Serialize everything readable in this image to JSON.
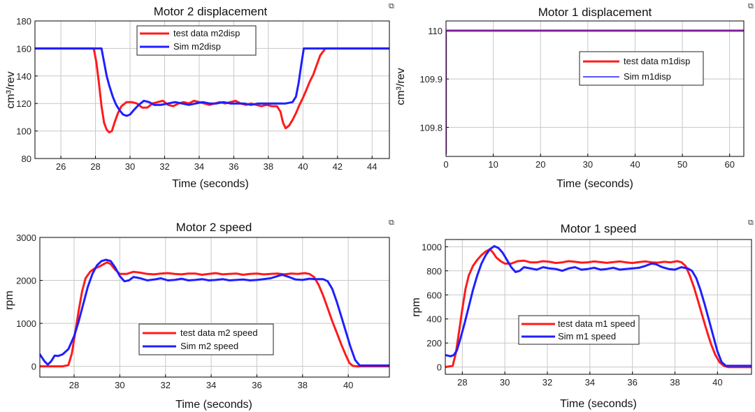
{
  "colors": {
    "test": "#ff1a1a",
    "sim": "#1f1fff",
    "flat": "#7a1f9c",
    "grid": "#c8c8c8",
    "axis": "#000000"
  },
  "corner_icon": "export-icon",
  "chart_data": [
    {
      "id": "m2disp",
      "type": "line",
      "title": "Motor 2 displacement",
      "xlabel": "Time (seconds)",
      "ylabel": "cm³/rev",
      "xlim": [
        24.5,
        45
      ],
      "ylim": [
        80,
        180
      ],
      "xticks": [
        26,
        28,
        30,
        32,
        34,
        36,
        38,
        40,
        42,
        44
      ],
      "yticks": [
        80,
        100,
        120,
        140,
        160,
        180
      ],
      "ytick_decimals": 0,
      "grid": true,
      "legend": "top-center",
      "series": [
        {
          "name": "test data m2disp",
          "color_key": "test",
          "x": [
            24.5,
            27.9,
            28.05,
            28.2,
            28.35,
            28.5,
            28.65,
            28.8,
            28.95,
            29.1,
            29.3,
            29.5,
            29.8,
            30.1,
            30.4,
            30.7,
            31.0,
            31.3,
            31.6,
            31.9,
            32.2,
            32.5,
            32.8,
            33.1,
            33.4,
            33.7,
            34.0,
            34.3,
            34.6,
            34.9,
            35.2,
            35.5,
            35.8,
            36.1,
            36.4,
            36.7,
            37.0,
            37.3,
            37.6,
            37.9,
            38.2,
            38.5,
            38.7,
            38.85,
            39.0,
            39.2,
            39.4,
            39.6,
            39.8,
            40.0,
            40.2,
            40.4,
            40.6,
            40.8,
            41.0,
            41.3,
            45.0
          ],
          "y": [
            160,
            160,
            150,
            135,
            118,
            106,
            101,
            99,
            100,
            106,
            113,
            118,
            121,
            121,
            120,
            117,
            117,
            120,
            121,
            122,
            119,
            118,
            120,
            121,
            120,
            122,
            121,
            120,
            119,
            120,
            121,
            120,
            121,
            122,
            120,
            119,
            120,
            119,
            118,
            119,
            118,
            118,
            114,
            106,
            102,
            104,
            108,
            113,
            119,
            124,
            130,
            136,
            141,
            148,
            155,
            160,
            160
          ]
        },
        {
          "name": "Sim m2disp",
          "color_key": "sim",
          "x": [
            24.5,
            28.35,
            28.5,
            28.65,
            28.8,
            29.0,
            29.2,
            29.4,
            29.6,
            29.8,
            30.0,
            30.2,
            30.5,
            30.8,
            31.1,
            31.4,
            31.8,
            32.2,
            32.6,
            33.0,
            33.4,
            33.8,
            34.2,
            34.6,
            35.0,
            35.4,
            35.8,
            36.2,
            36.6,
            37.0,
            37.4,
            37.8,
            38.2,
            38.6,
            39.0,
            39.4,
            39.6,
            39.75,
            39.9,
            40.05,
            45.0
          ],
          "y": [
            160,
            160,
            150,
            140,
            133,
            125,
            119,
            115,
            112,
            111,
            112,
            115,
            119,
            122,
            121,
            119,
            119,
            120,
            121,
            120,
            119,
            120,
            121,
            120,
            120,
            121,
            120,
            120,
            120,
            119,
            120,
            120,
            120,
            120,
            120,
            121,
            125,
            135,
            148,
            160,
            160
          ]
        }
      ]
    },
    {
      "id": "m1disp",
      "type": "line",
      "title": "Motor 1 displacement",
      "xlabel": "Time (seconds)",
      "ylabel": "cm³/rev",
      "xlim": [
        0,
        63
      ],
      "ylim": [
        109.74,
        110.02
      ],
      "xticks": [
        0,
        10,
        20,
        30,
        40,
        50,
        60
      ],
      "yticks": [
        109.8,
        109.9,
        110
      ],
      "ytick_decimals": 1,
      "grid": true,
      "legend": "center-right",
      "series": [
        {
          "name": "test data m1disp",
          "color_key": "test",
          "x": [
            0,
            63
          ],
          "y": [
            110,
            110
          ]
        },
        {
          "name": "Sim m1disp",
          "color_key": "sim",
          "x": [
            0,
            0,
            0.2,
            63
          ],
          "y": [
            109.745,
            110,
            110,
            110
          ]
        }
      ]
    },
    {
      "id": "m2speed",
      "type": "line",
      "title": "Motor 2 speed",
      "xlabel": "Time (seconds)",
      "ylabel": "rpm",
      "xlim": [
        26.5,
        41.8
      ],
      "ylim": [
        -250,
        3000
      ],
      "xticks": [
        28,
        30,
        32,
        34,
        36,
        38,
        40
      ],
      "yticks": [
        0,
        1000,
        2000,
        3000
      ],
      "ytick_decimals": 0,
      "grid": true,
      "legend": "lower-center",
      "series": [
        {
          "name": "test data m2 speed",
          "color_key": "test",
          "x": [
            26.5,
            27.5,
            27.75,
            27.9,
            28.05,
            28.2,
            28.35,
            28.5,
            28.7,
            28.9,
            29.1,
            29.3,
            29.45,
            29.6,
            29.8,
            30.0,
            30.3,
            30.6,
            30.9,
            31.2,
            31.5,
            31.8,
            32.1,
            32.4,
            32.7,
            33.0,
            33.3,
            33.6,
            33.9,
            34.2,
            34.5,
            34.8,
            35.1,
            35.4,
            35.7,
            36.0,
            36.3,
            36.6,
            36.9,
            37.2,
            37.5,
            37.8,
            38.1,
            38.3,
            38.5,
            38.7,
            38.9,
            39.1,
            39.3,
            39.5,
            39.7,
            39.9,
            40.05,
            40.2,
            40.4,
            41.0,
            41.8
          ],
          "y": [
            0,
            0,
            30,
            300,
            800,
            1300,
            1750,
            2050,
            2200,
            2280,
            2320,
            2380,
            2420,
            2380,
            2250,
            2150,
            2150,
            2200,
            2180,
            2150,
            2140,
            2160,
            2170,
            2150,
            2140,
            2160,
            2160,
            2130,
            2150,
            2170,
            2140,
            2150,
            2160,
            2130,
            2150,
            2160,
            2140,
            2150,
            2160,
            2140,
            2160,
            2150,
            2170,
            2150,
            2080,
            1900,
            1650,
            1350,
            1050,
            780,
            500,
            250,
            80,
            10,
            0,
            0,
            0
          ]
        },
        {
          "name": "Sim m2 speed",
          "color_key": "sim",
          "x": [
            26.5,
            26.7,
            26.85,
            27.0,
            27.15,
            27.3,
            27.5,
            27.75,
            28.0,
            28.2,
            28.4,
            28.6,
            28.8,
            29.0,
            29.2,
            29.4,
            29.6,
            29.8,
            30.0,
            30.2,
            30.4,
            30.6,
            30.9,
            31.2,
            31.5,
            31.8,
            32.1,
            32.4,
            32.7,
            33.0,
            33.3,
            33.6,
            33.9,
            34.2,
            34.5,
            34.8,
            35.1,
            35.4,
            35.7,
            36.0,
            36.3,
            36.6,
            36.9,
            37.1,
            37.4,
            37.7,
            38.0,
            38.3,
            38.6,
            38.9,
            39.1,
            39.3,
            39.5,
            39.7,
            39.9,
            40.1,
            40.3,
            40.5,
            41.8
          ],
          "y": [
            280,
            120,
            40,
            120,
            250,
            240,
            280,
            400,
            700,
            1050,
            1450,
            1850,
            2150,
            2350,
            2450,
            2480,
            2450,
            2300,
            2100,
            1980,
            2000,
            2080,
            2050,
            2000,
            2020,
            2050,
            2000,
            2010,
            2040,
            2000,
            2010,
            2030,
            2000,
            2010,
            2030,
            2000,
            2010,
            2020,
            2000,
            2010,
            2030,
            2050,
            2100,
            2130,
            2080,
            2020,
            2010,
            2040,
            2030,
            2030,
            1980,
            1800,
            1500,
            1150,
            800,
            450,
            150,
            20,
            20
          ]
        }
      ]
    },
    {
      "id": "m1speed",
      "type": "line",
      "title": "Motor 1 speed",
      "xlabel": "Time (seconds)",
      "ylabel": "rpm",
      "xlim": [
        27.2,
        41.6
      ],
      "ylim": [
        -60,
        1060
      ],
      "xticks": [
        28,
        30,
        32,
        34,
        36,
        38,
        40
      ],
      "yticks": [
        0,
        200,
        400,
        600,
        800,
        1000
      ],
      "ytick_decimals": 0,
      "grid": true,
      "legend": "lower-center",
      "series": [
        {
          "name": "test data m1 speed",
          "color_key": "test",
          "x": [
            27.2,
            27.55,
            27.7,
            27.85,
            28.0,
            28.15,
            28.3,
            28.5,
            28.7,
            28.9,
            29.1,
            29.3,
            29.45,
            29.6,
            29.8,
            30.0,
            30.3,
            30.6,
            30.9,
            31.2,
            31.5,
            31.8,
            32.1,
            32.4,
            32.7,
            33.0,
            33.3,
            33.6,
            33.9,
            34.2,
            34.5,
            34.8,
            35.1,
            35.4,
            35.7,
            36.0,
            36.3,
            36.6,
            36.9,
            37.2,
            37.5,
            37.8,
            38.1,
            38.3,
            38.5,
            38.7,
            38.9,
            39.1,
            39.3,
            39.5,
            39.7,
            39.9,
            40.1,
            40.3,
            40.5,
            41.6
          ],
          "y": [
            0,
            10,
            120,
            300,
            480,
            650,
            760,
            840,
            890,
            930,
            960,
            980,
            950,
            910,
            880,
            860,
            860,
            880,
            885,
            870,
            870,
            880,
            875,
            865,
            870,
            880,
            875,
            868,
            870,
            878,
            872,
            866,
            872,
            878,
            870,
            865,
            872,
            878,
            870,
            868,
            875,
            870,
            880,
            872,
            840,
            760,
            660,
            540,
            420,
            300,
            190,
            100,
            40,
            10,
            0,
            0
          ]
        },
        {
          "name": "Sim m1 speed",
          "color_key": "sim",
          "x": [
            27.2,
            27.45,
            27.6,
            27.75,
            27.9,
            28.1,
            28.3,
            28.5,
            28.7,
            28.9,
            29.1,
            29.3,
            29.5,
            29.7,
            29.9,
            30.1,
            30.3,
            30.5,
            30.7,
            30.9,
            31.2,
            31.5,
            31.8,
            32.1,
            32.4,
            32.7,
            33.0,
            33.3,
            33.6,
            33.9,
            34.2,
            34.5,
            34.8,
            35.1,
            35.4,
            35.7,
            36.0,
            36.3,
            36.6,
            36.9,
            37.1,
            37.4,
            37.7,
            38.0,
            38.3,
            38.6,
            38.8,
            39.0,
            39.2,
            39.4,
            39.6,
            39.8,
            40.0,
            40.2,
            40.4,
            41.6
          ],
          "y": [
            100,
            90,
            100,
            140,
            230,
            360,
            500,
            640,
            760,
            860,
            930,
            980,
            1005,
            990,
            950,
            890,
            830,
            790,
            800,
            830,
            820,
            810,
            830,
            820,
            815,
            800,
            820,
            830,
            810,
            815,
            825,
            810,
            815,
            825,
            810,
            815,
            820,
            825,
            840,
            860,
            855,
            830,
            815,
            810,
            830,
            820,
            800,
            740,
            640,
            520,
            390,
            260,
            130,
            40,
            10,
            10
          ]
        }
      ]
    }
  ]
}
